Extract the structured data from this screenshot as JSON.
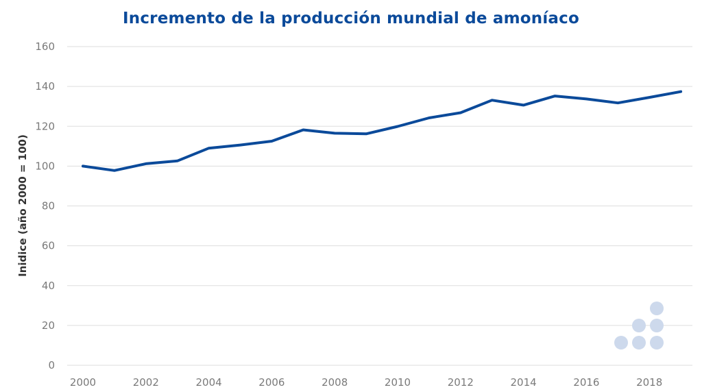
{
  "chart_data": {
    "type": "line",
    "title": "Incremento de la producción mundial de amoníaco",
    "xlabel": "",
    "ylabel": "Inidice (año 2000 = 100)",
    "x": [
      2000,
      2001,
      2002,
      2003,
      2004,
      2005,
      2006,
      2007,
      2008,
      2009,
      2010,
      2011,
      2012,
      2013,
      2014,
      2015,
      2016,
      2017,
      2018,
      2019
    ],
    "series": [
      {
        "name": "",
        "values": [
          100,
          97.8,
          101.2,
          102.6,
          109,
          110.6,
          112.5,
          118.2,
          116.5,
          116.2,
          119.9,
          124.2,
          126.8,
          133.1,
          130.6,
          135.2,
          133.7,
          131.7,
          134.5,
          137.4
        ]
      }
    ],
    "xticks": [
      "2000",
      "2002",
      "2004",
      "2006",
      "2008",
      "2010",
      "2012",
      "2014",
      "2016",
      "2018"
    ],
    "yticks": [
      "0",
      "20",
      "40",
      "60",
      "80",
      "100",
      "120",
      "140",
      "160"
    ],
    "ylim": [
      0,
      160
    ],
    "grid": true,
    "legend": "none",
    "colors": {
      "line": "#0b4a9a",
      "grid": "#dddddd",
      "ticks": "#7a7a7a",
      "title": "#0b4a9a",
      "logo": "#cdd9ec"
    }
  }
}
